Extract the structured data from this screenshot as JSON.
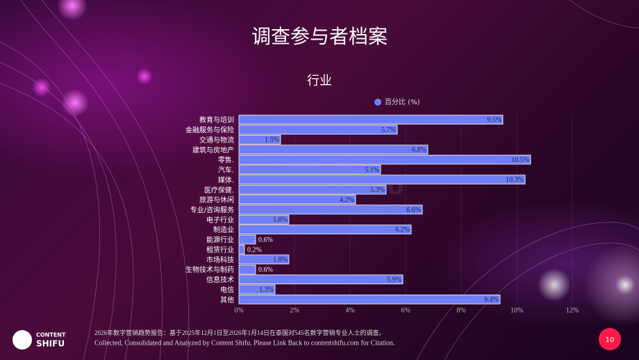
{
  "slide": {
    "title": "调查参与者档案",
    "page_number": "10",
    "footer": [
      "2026年数字营销趋势报告：基于2025年12月1日至2026年1月14日在泰国对545名数字营销专业人士的调查。",
      "Collected, Consolidated and Analyzed by Content Shifu. Please Link Back to contentshifu.com for Citation."
    ],
    "logo": [
      "CONTENT",
      "SHIFU"
    ],
    "watermark": [
      "CONTENT",
      "SHIFU"
    ]
  },
  "chart_data": {
    "type": "bar",
    "orientation": "horizontal",
    "title": "行业",
    "categories": [
      "教育与培训",
      "金融服务与保险",
      "交通与物流",
      "建筑与房地产",
      "零售.",
      "汽车.",
      "媒体.",
      "医疗保健.",
      "旅游与休闲",
      "专业/咨询服务",
      "电子行业",
      "制造业",
      "能源行业",
      "租赁行业",
      "市场科技",
      "生物技术与制药",
      "信息技术",
      "电信",
      "其他"
    ],
    "series": [
      {
        "name": "百分比 (%)",
        "color": "#6f7ff7",
        "values": [
          9.5,
          5.7,
          1.5,
          6.8,
          10.5,
          5.1,
          10.3,
          5.3,
          4.2,
          6.6,
          1.8,
          6.2,
          0.6,
          0.2,
          1.8,
          0.6,
          5.9,
          1.3,
          9.4
        ],
        "value_labels": [
          "9.5%",
          "5.7%",
          "1.5%",
          "6.8%",
          "10.5%",
          "5.1%",
          "10.3%",
          "5.3%",
          "4.2%",
          "6.6%",
          "1.8%",
          "6.2%",
          "0.6%",
          "0.2%",
          "1.8%",
          "0.6%",
          "5.9%",
          "1.3%",
          "9.4%"
        ]
      }
    ],
    "xlim": [
      0,
      12
    ],
    "xticks": [
      {
        "value": 0,
        "label": "0%"
      },
      {
        "value": 2,
        "label": "2%"
      },
      {
        "value": 4,
        "label": "4%"
      },
      {
        "value": 6,
        "label": "6%"
      },
      {
        "value": 8,
        "label": "8%"
      },
      {
        "value": 10,
        "label": "10%"
      },
      {
        "value": 12,
        "label": "12%"
      }
    ],
    "legend": "top",
    "grid": true
  }
}
